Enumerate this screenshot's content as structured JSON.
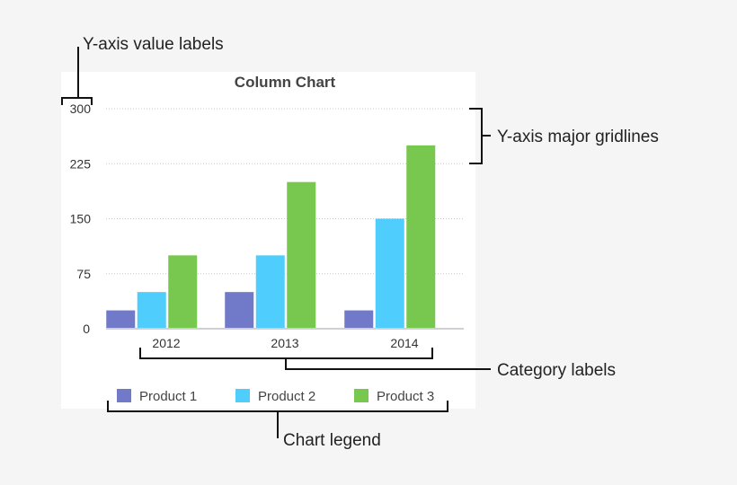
{
  "chart_data": {
    "type": "bar",
    "title": "Column Chart",
    "categories": [
      "2012",
      "2013",
      "2014"
    ],
    "series": [
      {
        "name": "Product 1",
        "values": [
          25,
          50,
          25
        ],
        "color": "#7179c9"
      },
      {
        "name": "Product 2",
        "values": [
          50,
          100,
          150
        ],
        "color": "#4fcdfc"
      },
      {
        "name": "Product 3",
        "values": [
          100,
          200,
          250
        ],
        "color": "#78c74e"
      }
    ],
    "yticks": [
      0,
      75,
      150,
      225,
      300
    ],
    "ylim": [
      0,
      300
    ],
    "grid": true,
    "legend": "bottom"
  },
  "annotations": {
    "y_axis_labels": "Y-axis value labels",
    "y_gridlines": "Y-axis major gridlines",
    "category_labels": "Category labels",
    "legend": "Chart legend"
  }
}
